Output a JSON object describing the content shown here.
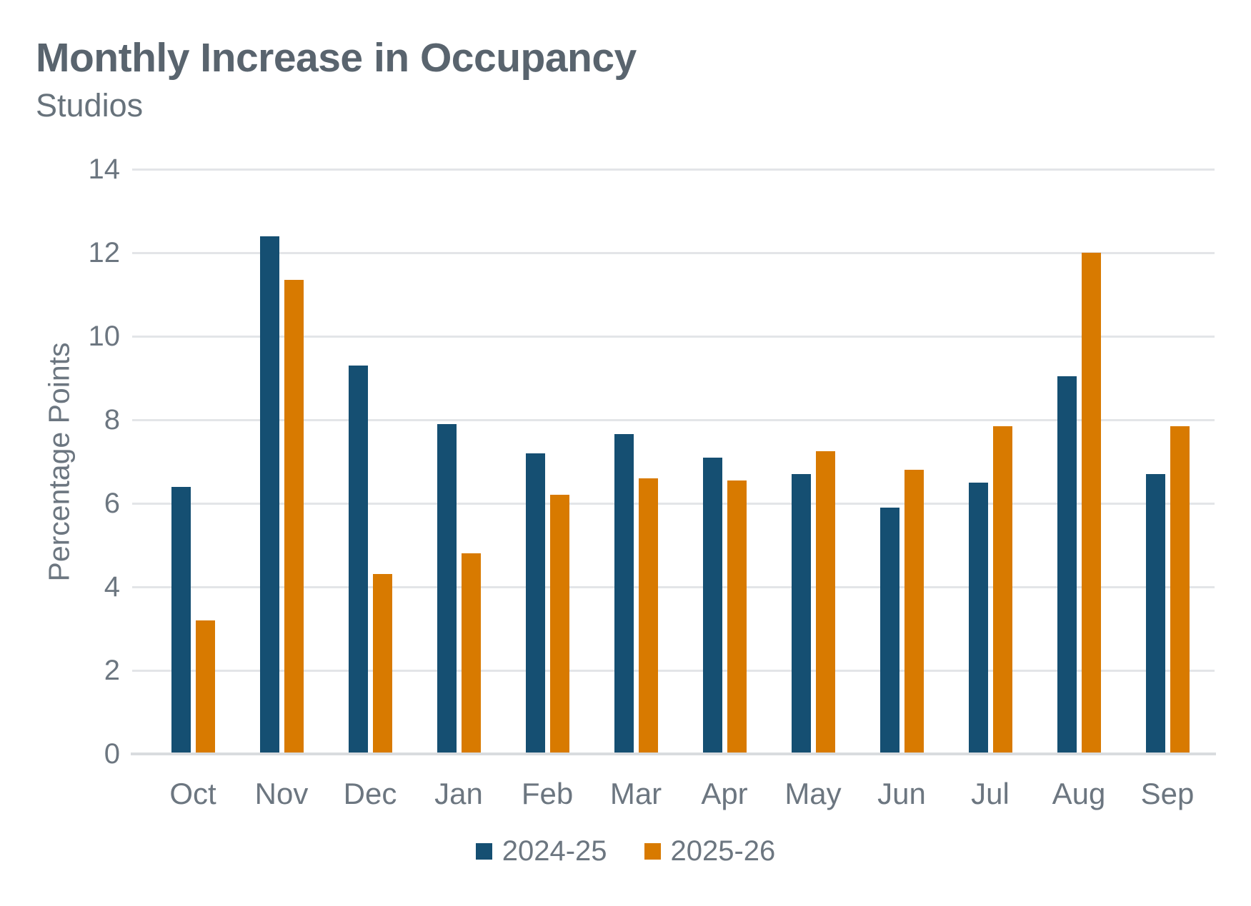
{
  "header": {
    "title": "Monthly Increase in Occupancy",
    "subtitle": "Studios"
  },
  "chart_data": {
    "type": "bar",
    "title": "Monthly Increase in Occupancy",
    "subtitle": "Studios",
    "categories": [
      "Oct",
      "Nov",
      "Dec",
      "Jan",
      "Feb",
      "Mar",
      "Apr",
      "May",
      "Jun",
      "Jul",
      "Aug",
      "Sep"
    ],
    "series": [
      {
        "name": "2024-25",
        "color": "#154F72",
        "values": [
          6.4,
          12.4,
          9.3,
          7.9,
          7.2,
          7.65,
          7.1,
          6.7,
          5.9,
          6.5,
          9.05,
          6.7
        ]
      },
      {
        "name": "2025-26",
        "color": "#D87A00",
        "values": [
          3.2,
          11.35,
          4.3,
          4.8,
          6.2,
          6.6,
          6.55,
          7.25,
          6.8,
          7.85,
          12.0,
          7.85
        ]
      }
    ],
    "xlabel": "",
    "ylabel": "Percentage Points",
    "ylim": [
      0,
      14
    ],
    "ytick_step": 2,
    "yticks": [
      0,
      2,
      4,
      6,
      8,
      10,
      12,
      14
    ],
    "grid": true,
    "legend_position": "bottom",
    "gridline_color": "#E3E5E8",
    "axis_line_color": "#D9DCDF",
    "text_color": "#6C7680",
    "title_color": "#59646E"
  }
}
